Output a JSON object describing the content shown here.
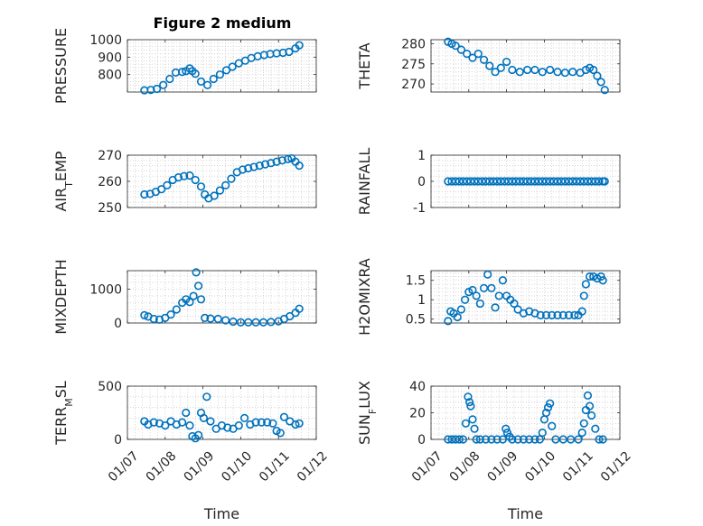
{
  "figure": {
    "title": "Figure 2 medium",
    "colors": {
      "marker": "#0072BD",
      "axis": "#262626",
      "grid": "#bdbdbd"
    }
  },
  "chart_data": [
    {
      "type": "scatter",
      "id": "pressure",
      "ylabel": "PRESSURE",
      "ylim": [
        700,
        1000
      ],
      "yticks": [
        800,
        900,
        1000
      ],
      "yticklabels": [
        "800",
        "900",
        "1000"
      ],
      "xlim": [
        0,
        5
      ],
      "xticks": [
        0,
        1,
        2,
        3,
        4,
        5
      ],
      "xticklabels": [
        "01/07",
        "01/08",
        "01/09",
        "01/10",
        "01/11",
        "01/12"
      ],
      "show_xtick_labels": false,
      "xlabel": "",
      "grid": true,
      "marker": "open-circle",
      "x": [
        0.45,
        0.62,
        0.78,
        0.95,
        1.12,
        1.28,
        1.45,
        1.55,
        1.65,
        1.72,
        1.8,
        1.95,
        2.12,
        2.28,
        2.45,
        2.62,
        2.78,
        2.95,
        3.12,
        3.28,
        3.45,
        3.62,
        3.78,
        3.95,
        4.12,
        4.28,
        4.45,
        4.55
      ],
      "y": [
        710,
        712,
        718,
        740,
        775,
        812,
        815,
        820,
        835,
        820,
        805,
        760,
        740,
        775,
        800,
        825,
        845,
        865,
        880,
        895,
        905,
        912,
        918,
        922,
        925,
        930,
        950,
        968
      ]
    },
    {
      "type": "scatter",
      "id": "theta",
      "ylabel": "THETA",
      "ylim": [
        268,
        281
      ],
      "yticks": [
        270,
        275,
        280
      ],
      "yticklabels": [
        "270",
        "275",
        "280"
      ],
      "xlim": [
        0,
        5
      ],
      "xticks": [
        0,
        1,
        2,
        3,
        4,
        5
      ],
      "xticklabels": [
        "01/07",
        "01/08",
        "01/09",
        "01/10",
        "01/11",
        "01/12"
      ],
      "show_xtick_labels": false,
      "xlabel": "",
      "grid": true,
      "marker": "open-circle",
      "x": [
        0.45,
        0.55,
        0.65,
        0.8,
        0.95,
        1.1,
        1.25,
        1.4,
        1.55,
        1.7,
        1.85,
        2.0,
        2.15,
        2.35,
        2.55,
        2.75,
        2.95,
        3.15,
        3.35,
        3.55,
        3.75,
        3.95,
        4.1,
        4.2,
        4.3,
        4.4,
        4.5,
        4.6
      ],
      "y": [
        280.5,
        280,
        279.5,
        278.5,
        277.5,
        276.5,
        277.5,
        276,
        274.5,
        273,
        274,
        275.5,
        273.5,
        273,
        273.5,
        273.5,
        273,
        273.5,
        273,
        272.8,
        273,
        272.8,
        273.5,
        274,
        273.5,
        272,
        270.5,
        268.5
      ]
    },
    {
      "type": "scatter",
      "id": "air_temp",
      "ylabel": "AIR_TEMP",
      "ylim": [
        250,
        270
      ],
      "yticks": [
        250,
        260,
        270
      ],
      "yticklabels": [
        "250",
        "260",
        "270"
      ],
      "xlim": [
        0,
        5
      ],
      "xticks": [
        0,
        1,
        2,
        3,
        4,
        5
      ],
      "xticklabels": [
        "01/07",
        "01/08",
        "01/09",
        "01/10",
        "01/11",
        "01/12"
      ],
      "show_xtick_labels": false,
      "xlabel": "",
      "grid": true,
      "marker": "open-circle",
      "x": [
        0.45,
        0.6,
        0.75,
        0.9,
        1.05,
        1.2,
        1.35,
        1.5,
        1.65,
        1.8,
        1.95,
        2.05,
        2.15,
        2.3,
        2.45,
        2.6,
        2.75,
        2.9,
        3.05,
        3.2,
        3.35,
        3.5,
        3.65,
        3.8,
        3.95,
        4.1,
        4.25,
        4.35,
        4.45,
        4.55
      ],
      "y": [
        255,
        255.2,
        256,
        257,
        258.5,
        260.5,
        261.5,
        262,
        262.2,
        260.5,
        258,
        255,
        253.5,
        254.5,
        256.5,
        258.5,
        261,
        263.5,
        264.5,
        265,
        265.5,
        266,
        266.5,
        267,
        267.5,
        268,
        268.5,
        268.8,
        267.5,
        266
      ]
    },
    {
      "type": "scatter",
      "id": "rainfall",
      "ylabel": "RAINFALL",
      "ylim": [
        -1,
        1
      ],
      "yticks": [
        -1,
        0,
        1
      ],
      "yticklabels": [
        "-1",
        "0",
        "1"
      ],
      "xlim": [
        0,
        5
      ],
      "xticks": [
        0,
        1,
        2,
        3,
        4,
        5
      ],
      "xticklabels": [
        "01/07",
        "01/08",
        "01/09",
        "01/10",
        "01/11",
        "01/12"
      ],
      "show_xtick_labels": false,
      "xlabel": "",
      "grid": true,
      "marker": "open-circle",
      "x": [
        0.45,
        0.55,
        0.65,
        0.75,
        0.85,
        0.95,
        1.05,
        1.15,
        1.25,
        1.35,
        1.45,
        1.55,
        1.65,
        1.75,
        1.85,
        1.95,
        2.05,
        2.15,
        2.25,
        2.35,
        2.45,
        2.55,
        2.65,
        2.75,
        2.85,
        2.95,
        3.05,
        3.15,
        3.25,
        3.35,
        3.45,
        3.55,
        3.65,
        3.75,
        3.85,
        3.95,
        4.05,
        4.15,
        4.25,
        4.35,
        4.45,
        4.55,
        4.6
      ],
      "y": [
        0,
        0,
        0,
        0,
        0,
        0,
        0,
        0,
        0,
        0,
        0,
        0,
        0,
        0,
        0,
        0,
        0,
        0,
        0,
        0,
        0,
        0,
        0,
        0,
        0,
        0,
        0,
        0,
        0,
        0,
        0,
        0,
        0,
        0,
        0,
        0,
        0,
        0,
        0,
        0,
        0,
        0,
        0
      ]
    },
    {
      "type": "scatter",
      "id": "mixdepth",
      "ylabel": "MIXDEPTH",
      "ylim": [
        0,
        1550
      ],
      "yticks": [
        0,
        1000
      ],
      "yticklabels": [
        "0",
        "1000"
      ],
      "xlim": [
        0,
        5
      ],
      "xticks": [
        0,
        1,
        2,
        3,
        4,
        5
      ],
      "xticklabels": [
        "01/07",
        "01/08",
        "01/09",
        "01/10",
        "01/11",
        "01/12"
      ],
      "show_xtick_labels": false,
      "xlabel": "",
      "grid": true,
      "marker": "open-circle",
      "x": [
        0.45,
        0.55,
        0.7,
        0.85,
        1.0,
        1.15,
        1.3,
        1.45,
        1.55,
        1.65,
        1.75,
        1.82,
        1.88,
        1.95,
        2.05,
        2.2,
        2.4,
        2.6,
        2.8,
        3.0,
        3.2,
        3.4,
        3.6,
        3.8,
        4.0,
        4.15,
        4.3,
        4.45,
        4.55
      ],
      "y": [
        230,
        190,
        120,
        100,
        150,
        250,
        400,
        600,
        700,
        620,
        800,
        1500,
        1100,
        700,
        150,
        130,
        120,
        80,
        40,
        20,
        20,
        20,
        20,
        30,
        50,
        120,
        200,
        300,
        420
      ]
    },
    {
      "type": "scatter",
      "id": "h2omixra",
      "ylabel": "H2OMIXRA",
      "ylim": [
        0.4,
        1.75
      ],
      "yticks": [
        0.5,
        1,
        1.5
      ],
      "yticklabels": [
        "0.5",
        "1",
        "1.5"
      ],
      "xlim": [
        0,
        5
      ],
      "xticks": [
        0,
        1,
        2,
        3,
        4,
        5
      ],
      "xticklabels": [
        "01/07",
        "01/08",
        "01/09",
        "01/10",
        "01/11",
        "01/12"
      ],
      "show_xtick_labels": false,
      "xlabel": "",
      "grid": true,
      "marker": "open-circle",
      "x": [
        0.45,
        0.52,
        0.6,
        0.7,
        0.8,
        0.9,
        1.0,
        1.1,
        1.2,
        1.3,
        1.4,
        1.5,
        1.6,
        1.7,
        1.8,
        1.9,
        2.0,
        2.1,
        2.2,
        2.3,
        2.45,
        2.6,
        2.75,
        2.9,
        3.05,
        3.2,
        3.35,
        3.5,
        3.65,
        3.8,
        3.9,
        4.0,
        4.05,
        4.1,
        4.2,
        4.3,
        4.4,
        4.5,
        4.55
      ],
      "y": [
        0.45,
        0.7,
        0.65,
        0.55,
        0.75,
        1.0,
        1.2,
        1.25,
        1.1,
        0.9,
        1.3,
        1.65,
        1.3,
        0.8,
        1.1,
        1.5,
        1.1,
        1.0,
        0.9,
        0.75,
        0.65,
        0.7,
        0.65,
        0.6,
        0.6,
        0.6,
        0.6,
        0.6,
        0.6,
        0.6,
        0.6,
        0.7,
        1.1,
        1.4,
        1.6,
        1.6,
        1.55,
        1.6,
        1.5
      ]
    },
    {
      "type": "scatter",
      "id": "terr_msl",
      "ylabel": "TERR_MSL",
      "ylim": [
        0,
        500
      ],
      "yticks": [
        0,
        500
      ],
      "yticklabels": [
        "0",
        "500"
      ],
      "xlim": [
        0,
        5
      ],
      "xticks": [
        0,
        1,
        2,
        3,
        4,
        5
      ],
      "xticklabels": [
        "01/07",
        "01/08",
        "01/09",
        "01/10",
        "01/11",
        "01/12"
      ],
      "show_xtick_labels": true,
      "xlabel": "Time",
      "grid": true,
      "marker": "open-circle",
      "x": [
        0.45,
        0.55,
        0.7,
        0.85,
        1.0,
        1.15,
        1.3,
        1.45,
        1.55,
        1.65,
        1.72,
        1.8,
        1.88,
        1.95,
        2.02,
        2.1,
        2.2,
        2.35,
        2.5,
        2.65,
        2.8,
        2.95,
        3.1,
        3.25,
        3.4,
        3.55,
        3.7,
        3.85,
        3.95,
        4.05,
        4.15,
        4.3,
        4.45,
        4.55
      ],
      "y": [
        170,
        140,
        160,
        150,
        130,
        170,
        140,
        160,
        250,
        130,
        30,
        10,
        40,
        250,
        200,
        400,
        170,
        100,
        130,
        110,
        100,
        130,
        200,
        140,
        160,
        160,
        160,
        150,
        80,
        60,
        210,
        170,
        140,
        150
      ]
    },
    {
      "type": "scatter",
      "id": "sun_flux",
      "ylabel": "SUN_FLUX",
      "ylim": [
        0,
        40
      ],
      "yticks": [
        0,
        20,
        40
      ],
      "yticklabels": [
        "0",
        "20",
        "40"
      ],
      "xlim": [
        0,
        5
      ],
      "xticks": [
        0,
        1,
        2,
        3,
        4,
        5
      ],
      "xticklabels": [
        "01/07",
        "01/08",
        "01/09",
        "01/10",
        "01/11",
        "01/12"
      ],
      "show_xtick_labels": true,
      "xlabel": "Time",
      "grid": true,
      "marker": "open-circle",
      "x": [
        0.45,
        0.55,
        0.65,
        0.75,
        0.85,
        0.92,
        0.98,
        1.02,
        1.05,
        1.1,
        1.15,
        1.2,
        1.3,
        1.45,
        1.6,
        1.75,
        1.9,
        1.98,
        2.02,
        2.08,
        2.15,
        2.3,
        2.45,
        2.6,
        2.75,
        2.88,
        2.95,
        3.0,
        3.05,
        3.1,
        3.15,
        3.2,
        3.3,
        3.5,
        3.7,
        3.9,
        4.0,
        4.05,
        4.1,
        4.15,
        4.2,
        4.25,
        4.35,
        4.45,
        4.55
      ],
      "y": [
        0,
        0,
        0,
        0,
        0,
        12,
        32,
        28,
        25,
        15,
        8,
        0,
        0,
        0,
        0,
        0,
        0,
        8,
        5,
        2,
        0,
        0,
        0,
        0,
        0,
        0,
        5,
        15,
        20,
        24,
        27,
        10,
        0,
        0,
        0,
        0,
        5,
        12,
        22,
        33,
        25,
        18,
        8,
        0,
        0
      ]
    }
  ]
}
